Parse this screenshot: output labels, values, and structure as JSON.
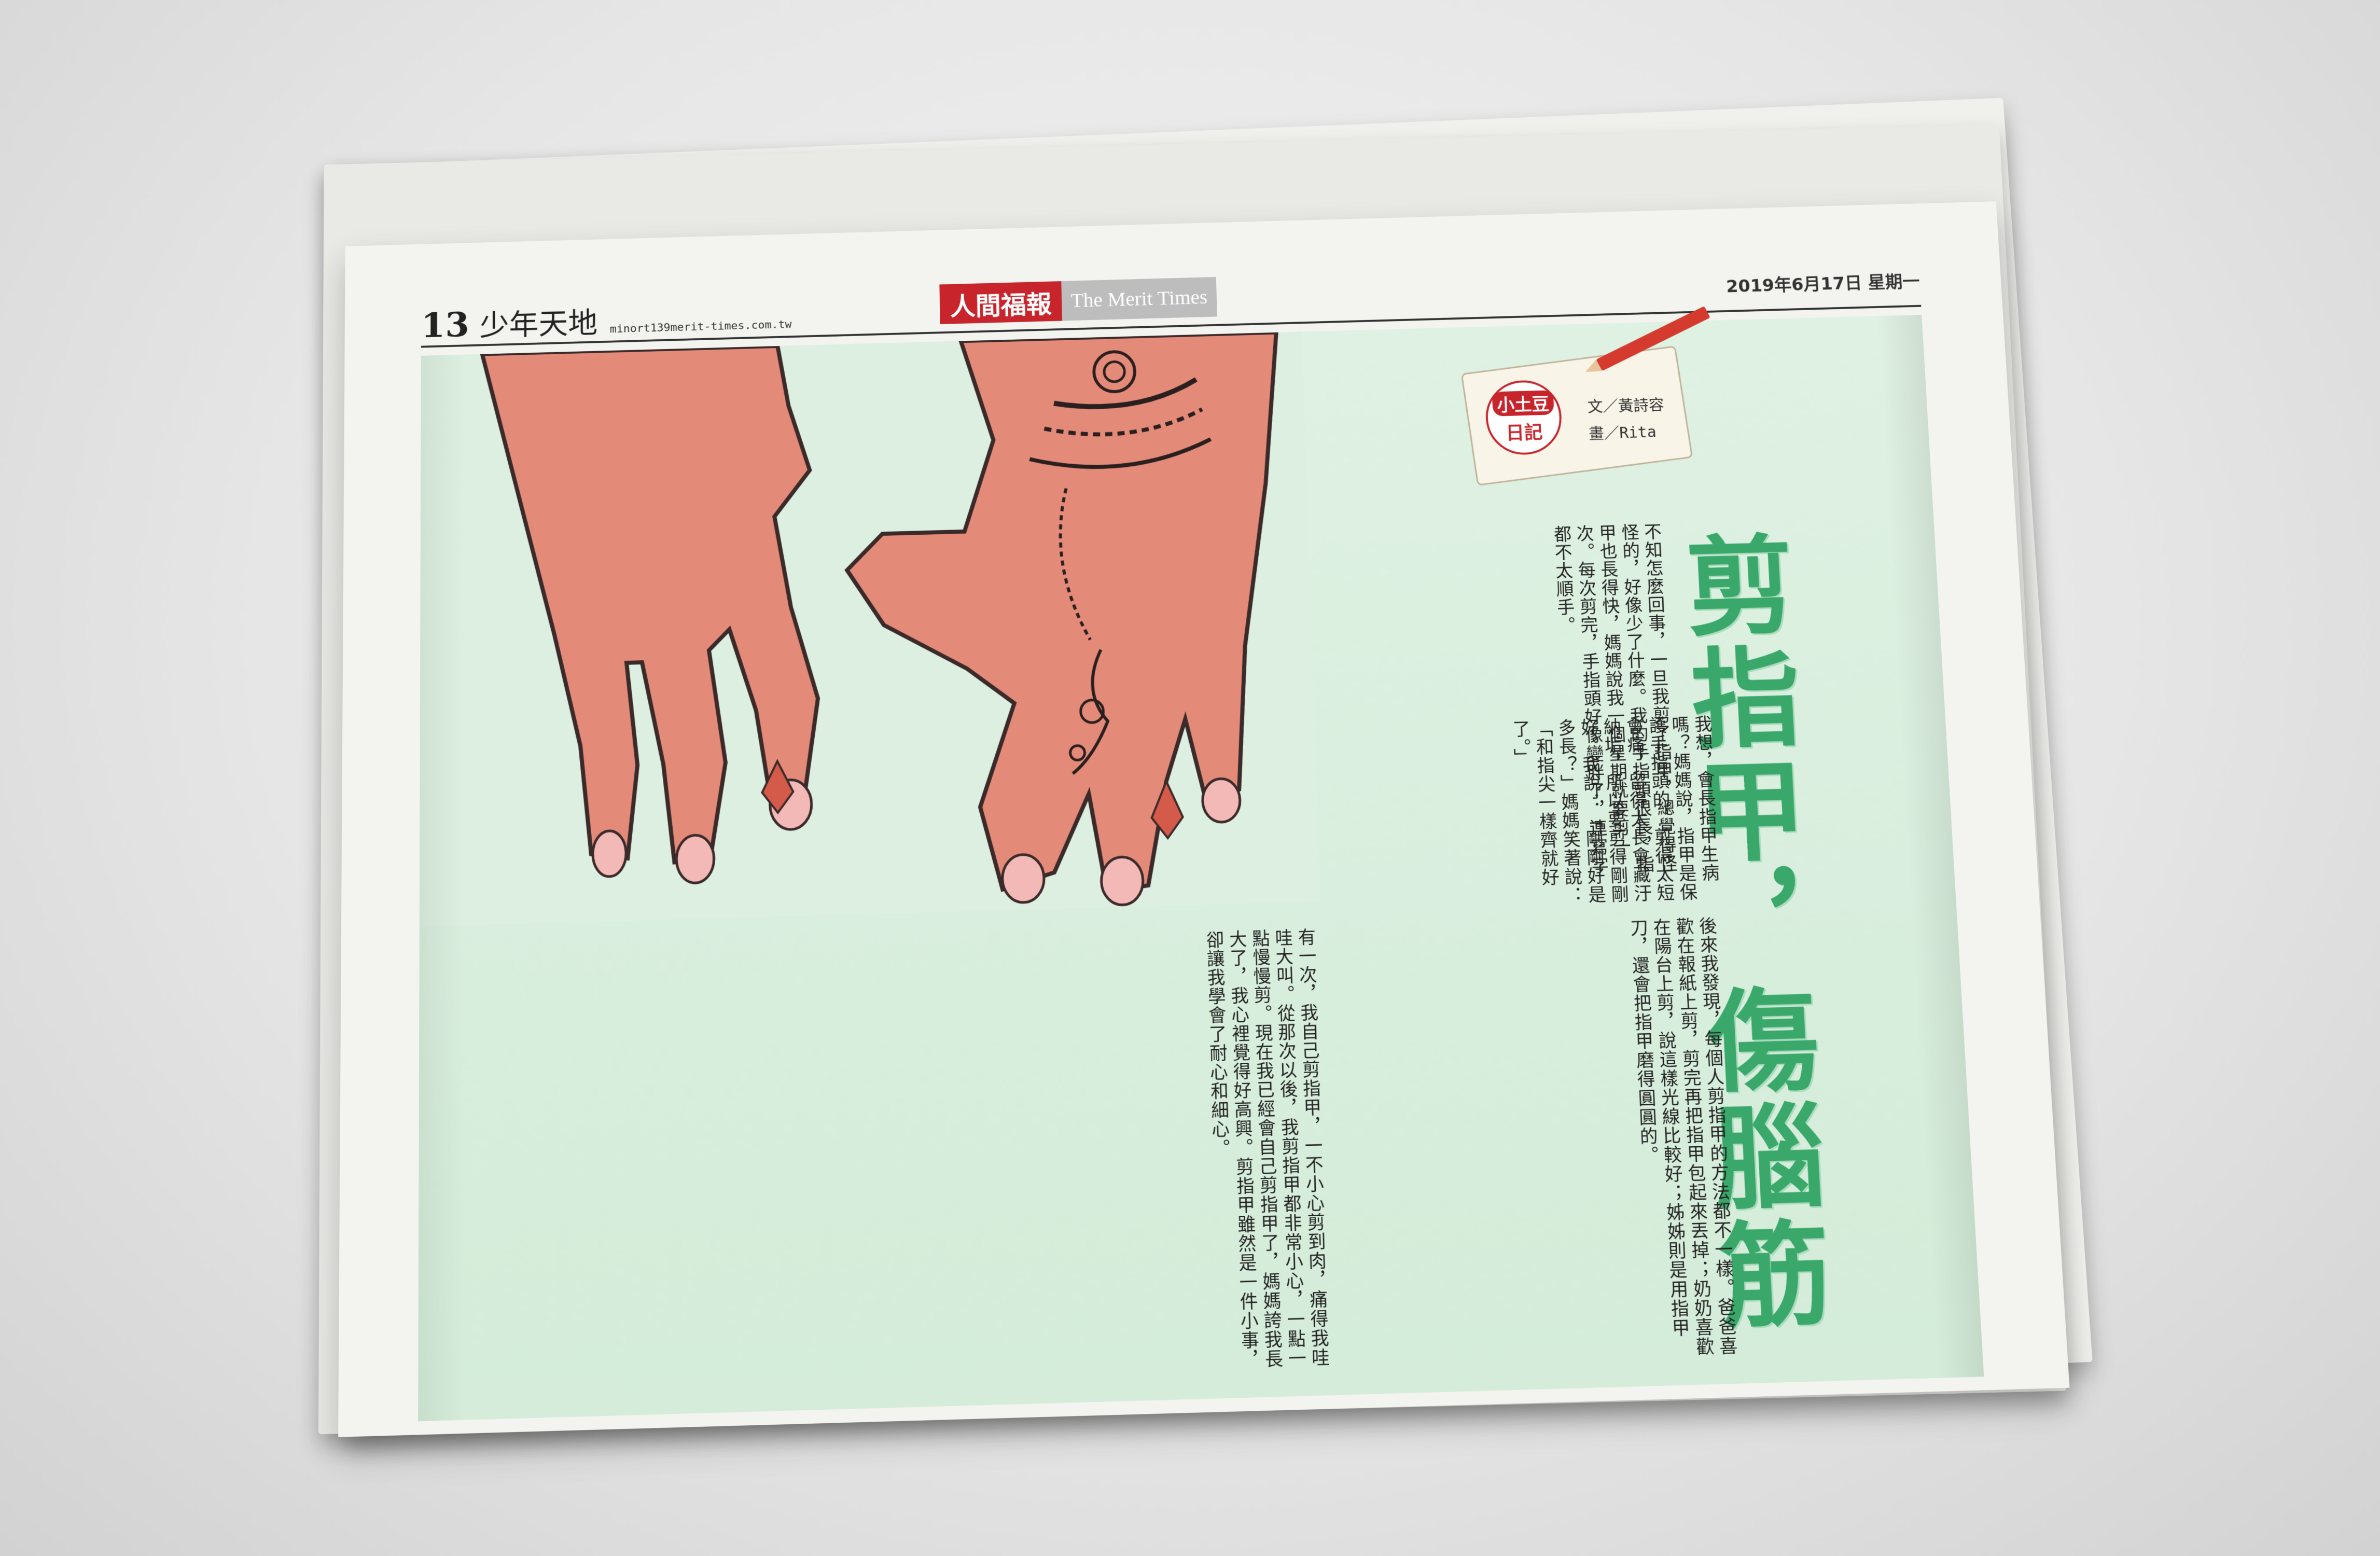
{
  "header": {
    "page_number": "13",
    "section": "少年天地",
    "email": "minort139merit-times.com.tw",
    "masthead_cn": "人間福報",
    "masthead_en": "The Merit Times",
    "date": "2019年6月17日 星期一"
  },
  "column_badge": {
    "title": "小土豆",
    "subtitle": "日記",
    "credit_text": "文／黃詩容",
    "credit_art": "畫／Rita"
  },
  "article": {
    "headline": "剪指甲，傷腦筋",
    "col1": "不知怎麼回事，一旦我剪了指甲，總覺得怪怪的，好像少了什麼。我的手指頭很長，指甲也長得快，媽媽說我一個星期就要剪一次。每次剪完，手指頭好像變胖了，連寫字都不太順手。",
    "col_upper": "我想，會長指甲生病嗎？媽媽說，指甲是保護手指頭的，剪得太短會痛，留得太長會藏汙納垢，所以要剪得剛剛好。我說：「剛剛好是多長？」媽媽笑著說：「和指尖一樣齊就好了。」",
    "col2": "後來我發現，每個人剪指甲的方法都不一樣。爸爸喜歡在報紙上剪，剪完再把指甲包起來丟掉；奶奶喜歡在陽台上剪，說這樣光線比較好；姊姊則是用指甲刀，還會把指甲磨得圓圓的。",
    "col3": "有一次，我自己剪指甲，一不小心剪到肉，痛得我哇哇大叫。從那次以後，我剪指甲都非常小心，一點一點慢慢剪。現在我已經會自己剪指甲了，媽媽誇我長大了，我心裡覺得好高興。剪指甲雖然是一件小事，卻讓我學會了耐心和細心。"
  },
  "colors": {
    "masthead_red": "#c8242b",
    "headline_green": "#3aa86a",
    "page_bg_green": "#d4ecd9",
    "skin": "#e48a78"
  },
  "illustration_icon": "hands-with-henna"
}
